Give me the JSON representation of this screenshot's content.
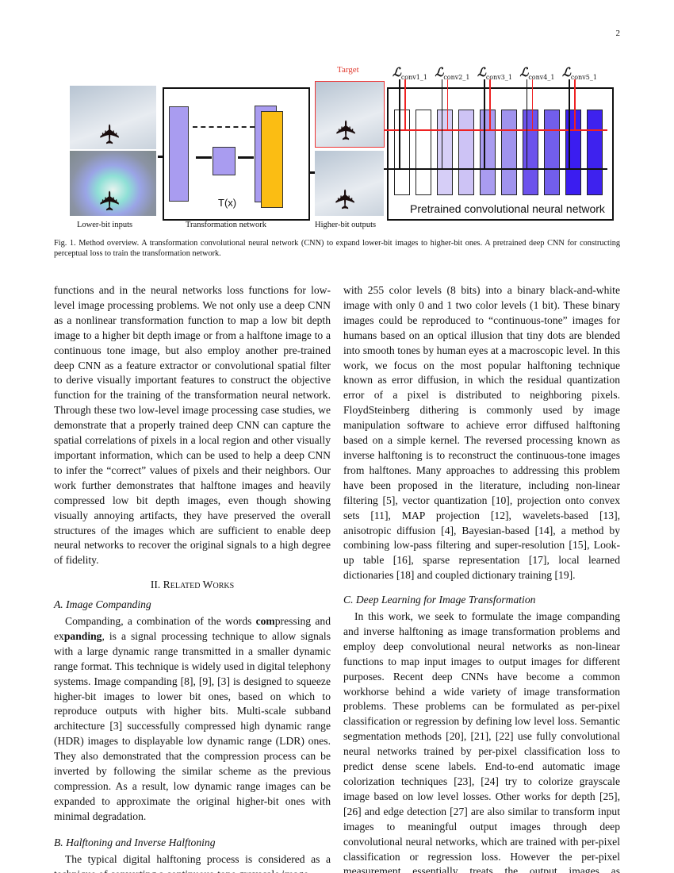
{
  "page_number": "2",
  "figure": {
    "target_label": "Target",
    "lower_label": "Lower-bit inputs",
    "transform_label": "Transformation network",
    "higher_label": "Higher-bit outputs",
    "tx_label": "T(x)",
    "pretrained_label": "Pretrained convolutional neural network",
    "losses": [
      {
        "sym": "ℒ",
        "sub": "conv1_1"
      },
      {
        "sym": "ℒ",
        "sub": "conv2_1"
      },
      {
        "sym": "ℒ",
        "sub": "conv3_1"
      },
      {
        "sym": "ℒ",
        "sub": "conv4_1"
      },
      {
        "sym": "ℒ",
        "sub": "conv5_1"
      }
    ],
    "layer_colors": [
      "#ffffff",
      "#ffffff",
      "#d6cef7",
      "#cdc3f5",
      "#a99cf0",
      "#a093ee",
      "#6c52ec",
      "#725eec",
      "#3b1df0",
      "#3e22ee"
    ],
    "caption": "Fig. 1.  Method overview. A transformation convolutional neural network (CNN) to expand lower-bit images to higher-bit ones. A pretrained deep CNN for constructing perceptual loss to train the transformation network."
  },
  "left": {
    "p1": "functions and in the neural networks loss functions for low-level image processing problems. We not only use a deep CNN as a nonlinear transformation function to map a low bit depth image to a higher bit depth image or from a halftone image to a continuous tone image, but also employ another pre-trained deep CNN as a feature extractor or convolutional spatial filter to derive visually important features to construct the objective function for the training of the transformation neural network. Through these two low-level image processing case studies, we demonstrate that a properly trained deep CNN can capture the spatial correlations of pixels in a local region and other visually important information, which can be used to help a deep CNN to infer the “correct” values of pixels and their neighbors. Our work further demonstrates that halftone images and heavily compressed low bit depth images, even though showing visually annoying artifacts, they have preserved the overall structures of the images which are sufficient to enable deep neural networks to recover the original signals to a high degree of fidelity.",
    "section": "II. Related Works",
    "subA": "A. Image Companding",
    "pA_1": "Companding, a combination of the words ",
    "pA_b1": "com",
    "pA_2": "pressing and ex",
    "pA_b2": "panding",
    "pA_3": ", is a signal processing technique to allow signals with a large dynamic range transmitted in a smaller dynamic range format. This technique is widely used in digital telephony systems. Image companding [8], [9], [3] is designed to squeeze higher-bit images to lower bit ones, based on which to reproduce outputs with higher bits. Multi-scale subband architecture [3] successfully compressed high dynamic range (HDR) images to displayable low dynamic range (LDR) ones. They also demonstrated that the compression process can be inverted by following the similar scheme as the previous compression. As a result, low dynamic range images can be expanded to approximate the original higher-bit ones with minimal degradation.",
    "subB": "B. Halftoning and Inverse Halftoning",
    "pB": "The typical digital halftoning process is considered as a technique of converting a continuous-tone grayscale image"
  },
  "right": {
    "p1": "with 255 color levels (8 bits) into a binary black-and-white image with only 0 and 1 two color levels (1 bit). These binary images could be reproduced to “continuous-tone” images for humans based on an optical illusion that tiny dots are blended into smooth tones by human eyes at a macroscopic level. In this work, we focus on the most popular halftoning technique known as error diffusion, in which the residual quantization error of a pixel is distributed to neighboring pixels. FloydSteinberg dithering is commonly used by image manipulation software to achieve error diffused halftoning based on a simple kernel. The reversed processing known as inverse halftoning is to reconstruct the continuous-tone images from halftones. Many approaches to addressing this problem have been proposed in the literature, including non-linear filtering [5], vector quantization [10], projection onto convex sets [11], MAP projection [12], wavelets-based [13], anisotropic diffusion [4], Bayesian-based [14], a method by combining low-pass filtering and super-resolution [15], Look-up table [16], sparse representation [17], local learned dictionaries [18] and coupled dictionary training [19].",
    "subC": "C. Deep Learning for Image Transformation",
    "pC": "In this work, we seek to formulate the image companding and inverse halftoning as image transformation problems and employ deep convolutional neural networks as non-linear functions to map input images to output images for different purposes. Recent deep CNNs have become a common workhorse behind a wide variety of image transformation problems. These problems can be formulated as per-pixel classification or regression by defining low level loss. Semantic segmentation methods [20], [21], [22] use fully convolutional neural networks trained by per-pixel classification loss to predict dense scene labels. End-to-end automatic image colorization techniques [23], [24] try to colorize grayscale image based on low level losses. Other works for depth [25], [26] and edge detection [27] are also similar to transform input images to meaningful output images through deep convolutional neural networks, which are trained with per-pixel classification or regression loss. However the per-pixel measurement essentially treats the output images as “unstructured” in a sense that each pixel is independent with all other pixels for a given image."
  }
}
